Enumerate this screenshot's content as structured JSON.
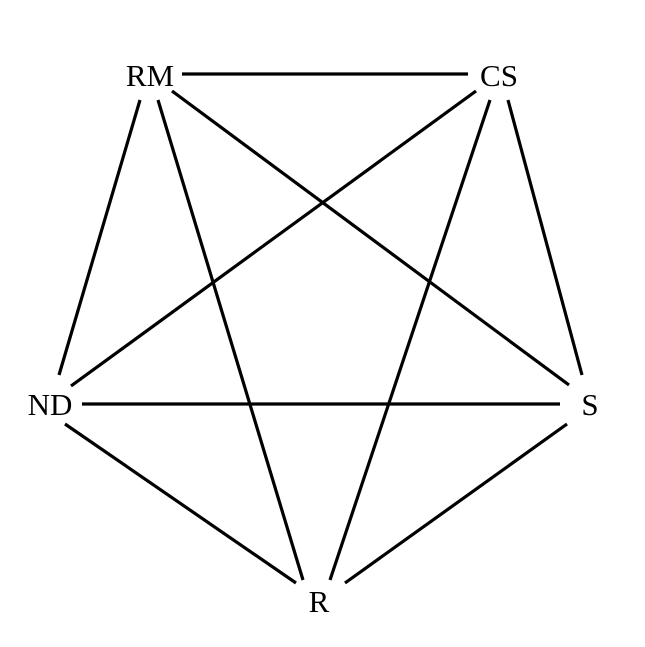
{
  "graph": {
    "nodes": [
      {
        "id": "RM",
        "label": "RM"
      },
      {
        "id": "CS",
        "label": "CS"
      },
      {
        "id": "ND",
        "label": "ND"
      },
      {
        "id": "S",
        "label": "S"
      },
      {
        "id": "R",
        "label": "R"
      }
    ],
    "edges": [
      {
        "from": "RM",
        "to": "CS"
      },
      {
        "from": "RM",
        "to": "ND"
      },
      {
        "from": "RM",
        "to": "S"
      },
      {
        "from": "RM",
        "to": "R"
      },
      {
        "from": "CS",
        "to": "ND"
      },
      {
        "from": "CS",
        "to": "S"
      },
      {
        "from": "CS",
        "to": "R"
      },
      {
        "from": "ND",
        "to": "S"
      },
      {
        "from": "ND",
        "to": "R"
      },
      {
        "from": "S",
        "to": "R"
      }
    ],
    "colors": {
      "line": "#000000",
      "text": "#000000",
      "background": "#ffffff"
    }
  }
}
